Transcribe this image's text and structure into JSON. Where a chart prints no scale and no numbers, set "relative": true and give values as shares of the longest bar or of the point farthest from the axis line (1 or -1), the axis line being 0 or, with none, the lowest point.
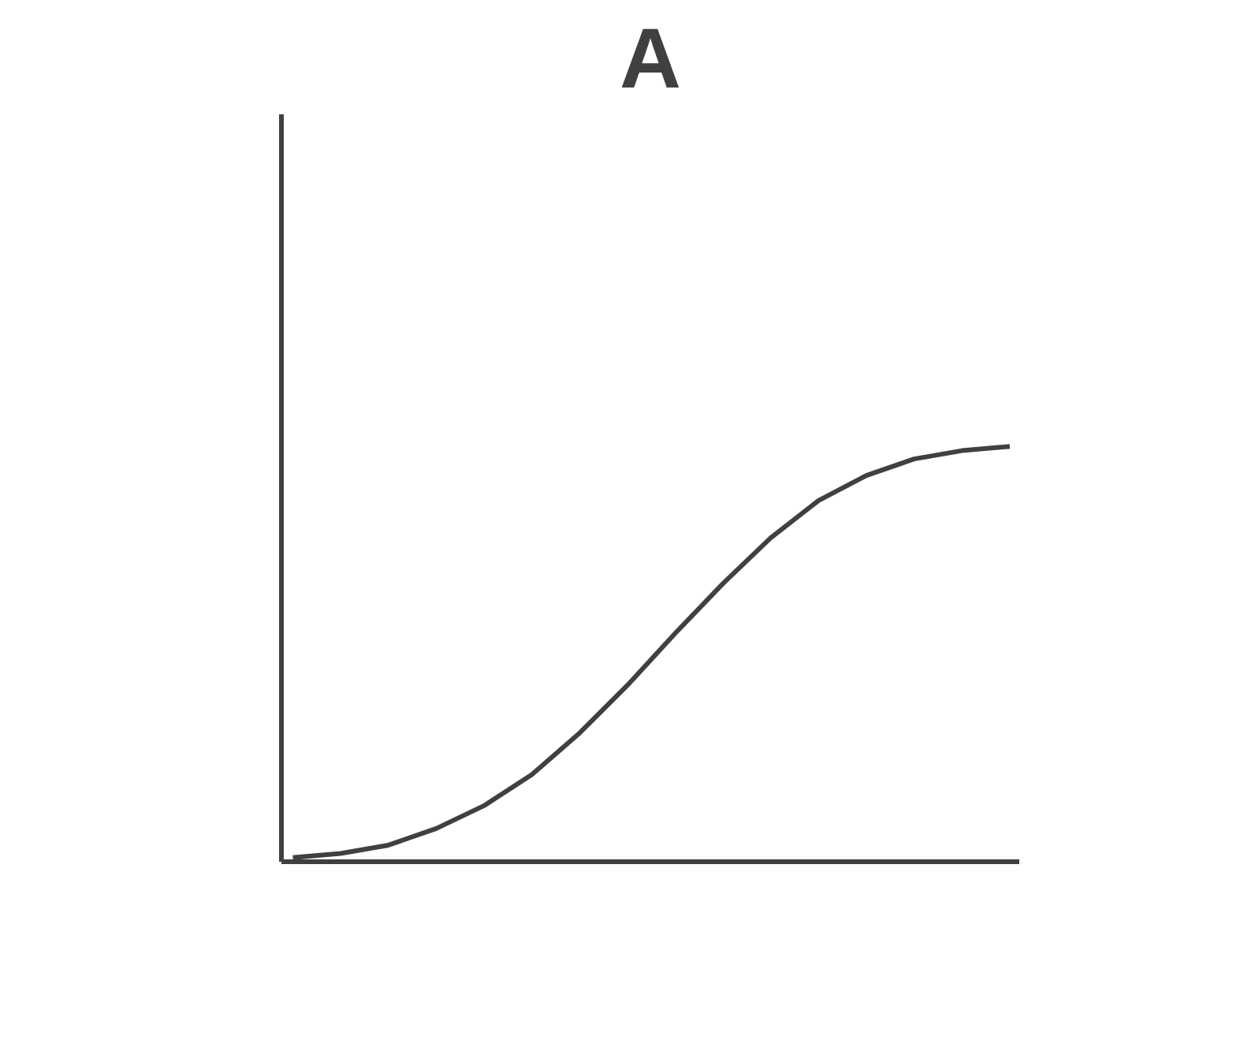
{
  "chart_data": {
    "type": "line",
    "title": "A",
    "relative": true,
    "color": "#404040",
    "categories": [
      null,
      null,
      null,
      null,
      null,
      null,
      null,
      null,
      null,
      null,
      null,
      null,
      null,
      null,
      null,
      null
    ],
    "values": [
      0.01,
      0.02,
      0.04,
      0.08,
      0.135,
      0.21,
      0.31,
      0.425,
      0.55,
      0.67,
      0.78,
      0.87,
      0.93,
      0.97,
      0.99,
      1.0
    ],
    "marker": "none",
    "line_style": "solid"
  }
}
